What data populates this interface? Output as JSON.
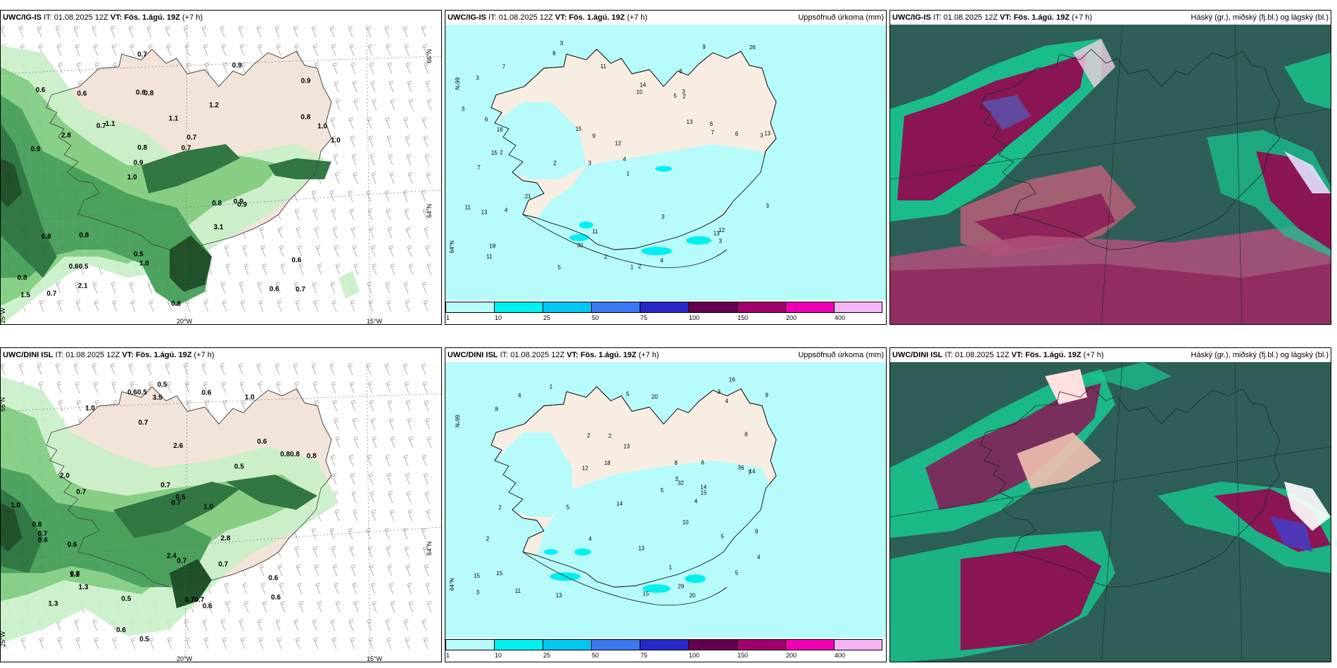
{
  "rows": [
    {
      "model": "UWC/IG-IS",
      "init_label": "IT:",
      "init_time": "01.08.2025 12Z",
      "valid_label": "VT:",
      "valid_time": "Fös. 1.ágú. 19Z",
      "lead": "(+7 h)",
      "wind_gusts": [
        "0.7",
        "0.9",
        "0.9",
        "1.0",
        "1.2",
        "0.7",
        "0.6",
        "1.1",
        "0.8",
        "1.1",
        "0.8",
        "0.60.5",
        "0.8",
        "0.7",
        "0.9",
        "0.6",
        "0.7",
        "1.0",
        "0.8",
        "0.8",
        "0.9",
        "0.5",
        "0.8",
        "0.6",
        "0.9",
        "0.8",
        "0.6",
        "0.6",
        "0.9",
        "0.8",
        "0.7",
        "2.8",
        "3.1",
        "2.1",
        "1.0",
        "0.7",
        "1.5",
        "1.0"
      ],
      "precip_labels": [
        "3",
        "6",
        "3",
        "3",
        "1",
        "2",
        "3",
        "5",
        "7",
        "10",
        "12",
        "11",
        "8",
        "2",
        "1",
        "2",
        "11",
        "9",
        "13",
        "21",
        "16",
        "15",
        "13",
        "6",
        "11",
        "6",
        "9",
        "7",
        "12",
        "13",
        "13",
        "14",
        "4",
        "15",
        "3",
        "3",
        "6",
        "30",
        "26",
        "11",
        "18",
        "5",
        "4",
        "7",
        "2",
        "2",
        "3",
        "3",
        "3",
        "4"
      ]
    },
    {
      "model": "UWC/DINI ISL",
      "init_label": "IT:",
      "init_time": "01.08.2025 12Z",
      "valid_label": "VT:",
      "valid_time": "Fös. 1.ágú. 19Z",
      "lead": "(+7 h)",
      "wind_gusts": [
        "1.3",
        "1.0",
        "1.0",
        "0.6",
        "0.7",
        "0.7",
        "0.6",
        "0.8",
        "0.80.8",
        "0.5",
        "0.8",
        "0.5",
        "0.7",
        "0.7",
        "0.5",
        "0.60.5",
        "0.6",
        "1.0",
        "1.1",
        "0.6",
        "0.6",
        "3.5",
        "0.7",
        "0.5",
        "0.7",
        "0.5",
        "0.7",
        "0.6",
        "2.6",
        "2.8",
        "2.0",
        "1.3",
        "0.70.7",
        "2.4",
        "0.6",
        "0.6",
        "0.8",
        "1.0"
      ],
      "precip_labels": [
        "2",
        "6",
        "2",
        "4",
        "3",
        "3",
        "8",
        "9",
        "6",
        "20",
        "13",
        "13",
        "16",
        "14",
        "15",
        "14",
        "12",
        "2",
        "1",
        "1",
        "2",
        "3",
        "9",
        "15",
        "15",
        "10",
        "11",
        "5",
        "8",
        "4",
        "5",
        "5",
        "4",
        "3",
        "4",
        "4",
        "5",
        "18",
        "14",
        "29",
        "20",
        "32",
        "13",
        "15",
        "8",
        "5",
        "7"
      ]
    }
  ],
  "precip_title": "Uppsöfnuð úrkoma (mm)",
  "cloud_title": "Háský (gr.), miðský (fj.bl.) og lágský (bl.)",
  "colorbar": {
    "ticks": [
      "1",
      "10",
      "25",
      "50",
      "75",
      "100",
      "150",
      "200",
      "400"
    ],
    "colors": [
      "#b8fbfb",
      "#00f0f0",
      "#00c8f0",
      "#3c78f0",
      "#2828c8",
      "#640050",
      "#a0006e",
      "#f000b4",
      "#f5b4f5"
    ]
  },
  "axis_labels": {
    "lat_66": "66°N",
    "lat_64": "64°N",
    "lon_25": "25°W",
    "lon_20": "20°W",
    "lon_15": "15°W"
  },
  "colors": {
    "land": "#f8ede3",
    "precip_light": "#b8fbfb",
    "precip_cyan": "#00f0f0",
    "gust_light": "#c8f0c8",
    "gust_mid": "#7ccc7c",
    "gust_dark": "#1e6b32",
    "gust_darkest": "#0a4016",
    "cloud_bg": "#2e5e58",
    "cloud_green": "#18c890",
    "cloud_magenta": "#8a1654",
    "cloud_pink": "#c0607a"
  }
}
